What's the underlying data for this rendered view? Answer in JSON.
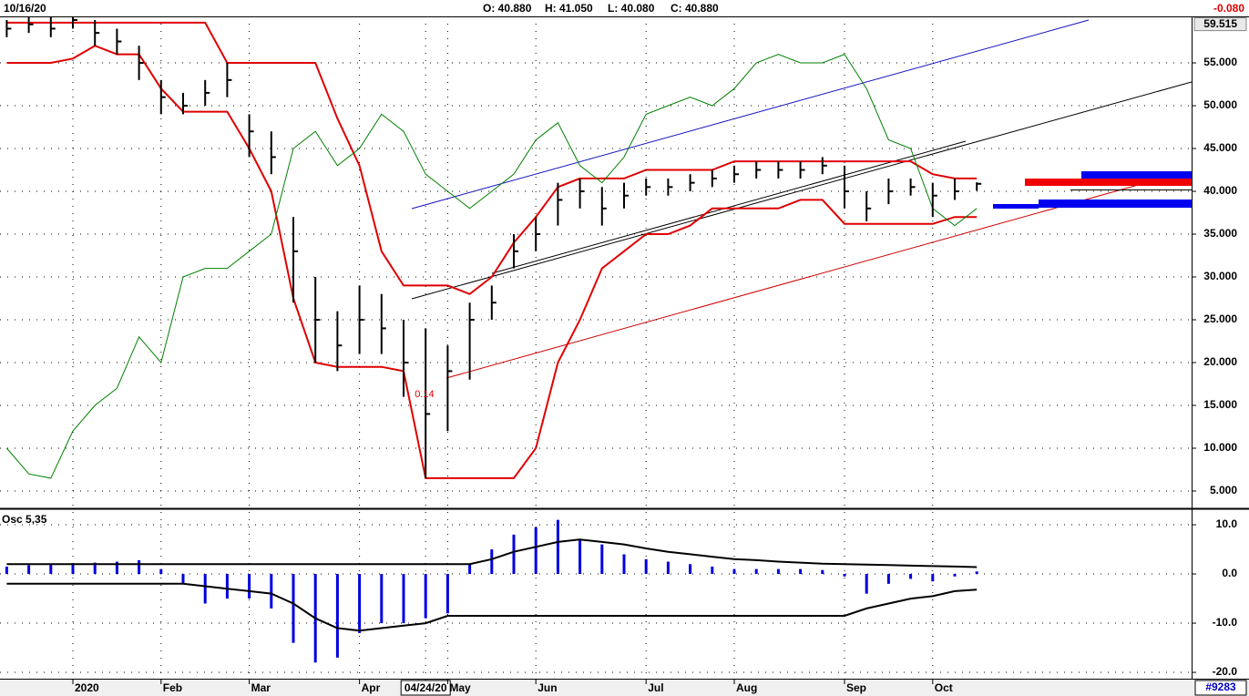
{
  "header": {
    "date": "10/16/20",
    "open": "O: 40.880",
    "high": "H: 41.050",
    "low": "L: 40.080",
    "close": "C: 40.880",
    "change": "-0.080"
  },
  "footer": {
    "id": "#9283"
  },
  "chart_data": [
    {
      "type": "ohlc",
      "categories": [
        null,
        null,
        null,
        "2020",
        null,
        null,
        null,
        "Feb",
        null,
        null,
        null,
        "Mar",
        null,
        null,
        null,
        null,
        "Apr",
        null,
        null,
        "04/24/20",
        "May",
        null,
        null,
        null,
        "Jun",
        null,
        null,
        null,
        null,
        "Jul",
        null,
        null,
        null,
        "Aug",
        null,
        null,
        null,
        null,
        "Sep",
        null,
        null,
        null,
        "Oct",
        null,
        null
      ],
      "high": [
        60,
        60.5,
        60.5,
        61,
        60,
        59,
        57,
        53,
        51.5,
        53,
        55,
        49,
        47,
        37,
        30,
        26,
        29,
        28,
        25,
        24,
        22,
        27,
        29,
        35,
        37,
        41,
        41.5,
        40.5,
        41,
        41.5,
        41.5,
        42,
        42.5,
        43,
        43.5,
        43.5,
        43.5,
        44,
        43,
        40,
        41.5,
        41.5,
        41,
        41.5,
        41.05
      ],
      "low": [
        58,
        58.5,
        58,
        59,
        57,
        56,
        53,
        49,
        49,
        50,
        51,
        44,
        42,
        27,
        20,
        19,
        21,
        21,
        16,
        6.5,
        12,
        18,
        25,
        31,
        33,
        36,
        38,
        36,
        38,
        39.5,
        39.5,
        40,
        40.5,
        41,
        41.5,
        41.5,
        41.5,
        42,
        38,
        36.5,
        38.5,
        39.5,
        37,
        39,
        40.08
      ],
      "close": [
        59,
        59.5,
        59,
        60,
        58.5,
        57.5,
        55,
        51,
        50,
        51.5,
        53,
        47,
        44,
        33,
        25,
        22,
        25,
        24,
        20,
        14,
        19,
        25,
        27,
        33,
        35,
        39,
        40,
        38,
        39.5,
        40.5,
        40.5,
        41,
        41.5,
        42,
        42.5,
        42.5,
        42.5,
        43,
        40,
        38,
        40,
        40.5,
        39.5,
        40,
        40.88
      ],
      "bar_color": "#000000",
      "series": [
        {
          "color": "#e00000",
          "values": [
            59.7,
            59.7,
            59.7,
            59.7,
            59.7,
            59.7,
            59.7,
            59.7,
            59.7,
            59.7,
            55,
            55,
            55,
            55,
            55,
            48.5,
            43,
            33,
            29,
            29,
            29,
            28,
            30,
            34,
            37,
            40.5,
            41.5,
            41.5,
            41.5,
            42.5,
            42.5,
            42.5,
            42.5,
            43.5,
            43.5,
            43.5,
            43.5,
            43.5,
            43.5,
            43.5,
            43.5,
            43.5,
            42,
            41.5,
            41.5
          ]
        },
        {
          "color": "#e00000",
          "values": [
            55,
            55,
            55,
            55.5,
            57,
            56,
            56,
            52,
            49.3,
            49.3,
            49.3,
            45,
            40,
            27.5,
            20,
            19.5,
            19.5,
            19.5,
            19,
            6.5,
            6.5,
            6.5,
            6.5,
            6.5,
            10,
            20,
            25,
            31,
            33,
            35,
            35,
            36,
            38,
            38,
            38,
            38,
            39,
            39,
            36.2,
            36.2,
            36.2,
            36.2,
            36.2,
            37,
            37
          ]
        },
        {
          "color": "#008000",
          "values": [
            10,
            7,
            6.5,
            12,
            15,
            17,
            23,
            20,
            30,
            31,
            31,
            33,
            35,
            45,
            47,
            43,
            45,
            49,
            47,
            42,
            40,
            38,
            40,
            42,
            46,
            48,
            43,
            41,
            44,
            49,
            50,
            51,
            50,
            52,
            55,
            56,
            55,
            55,
            56,
            52,
            46,
            45,
            38,
            36,
            38
          ]
        }
      ],
      "annotation": "0.14",
      "marker": 59.515,
      "ylim": [
        3.19,
        60.43
      ],
      "yticks": [
        {
          "value": 5,
          "label": "5.000"
        },
        {
          "value": 10,
          "label": "10.000"
        },
        {
          "value": 15,
          "label": "15.000"
        },
        {
          "value": 20,
          "label": "20.000"
        },
        {
          "value": 25,
          "label": "25.000"
        },
        {
          "value": 30,
          "label": "30.000"
        },
        {
          "value": 35,
          "label": "35.000"
        },
        {
          "value": 40,
          "label": "40.000"
        },
        {
          "value": 45,
          "label": "45.000"
        },
        {
          "value": 50,
          "label": "50.000"
        },
        {
          "value": 55,
          "label": "55.000"
        }
      ],
      "grid": true
    },
    {
      "type": "bar",
      "title": "Osc 5,35",
      "color": "#0000e0",
      "values": [
        1.5,
        1.8,
        2,
        2.2,
        2.3,
        2.5,
        2.8,
        1,
        -2,
        -6,
        -5,
        -5,
        -7,
        -14,
        -18,
        -17,
        -12,
        -10,
        -10,
        -9,
        -8,
        2,
        5,
        8,
        9.5,
        11,
        7,
        6,
        4,
        3,
        2.5,
        2,
        1.5,
        1,
        1,
        1,
        1,
        0.8,
        -0.5,
        -4,
        -2,
        -1,
        -1.5,
        -0.5,
        0.5
      ],
      "series": [
        {
          "color": "#000000",
          "values": [
            2,
            2,
            2,
            2,
            2,
            2,
            2,
            2,
            2,
            2,
            2,
            2,
            2,
            2,
            2,
            2,
            2,
            2,
            2,
            2,
            2,
            2,
            3,
            4.5,
            5.5,
            6.5,
            7,
            6.5,
            6,
            5.2,
            4.5,
            4,
            3.5,
            3,
            2.8,
            2.5,
            2.3,
            2.1,
            2,
            1.9,
            1.8,
            1.7,
            1.6,
            1.5,
            1.4
          ]
        },
        {
          "color": "#000000",
          "values": [
            -2,
            -2,
            -2,
            -2,
            -2,
            -2,
            -2,
            -2,
            -2,
            -2.5,
            -3,
            -3.5,
            -4,
            -6,
            -9,
            -11,
            -11.5,
            -11,
            -10.5,
            -10,
            -8.5,
            -8.5,
            -8.5,
            -8.5,
            -8.5,
            -8.5,
            -8.5,
            -8.5,
            -8.5,
            -8.5,
            -8.5,
            -8.5,
            -8.5,
            -8.5,
            -8.5,
            -8.5,
            -8.5,
            -8.5,
            -8.5,
            -7,
            -6,
            -5,
            -4.5,
            -3.5,
            -3.2
          ]
        }
      ],
      "ylim": [
        -21.1,
        12.6
      ],
      "yticks": [
        {
          "value": 10,
          "label": "10.0"
        },
        {
          "value": 0,
          "label": "0.0"
        },
        {
          "value": -10,
          "label": "-10.0"
        },
        {
          "value": -20,
          "label": "-20.0"
        }
      ],
      "grid": true
    }
  ]
}
